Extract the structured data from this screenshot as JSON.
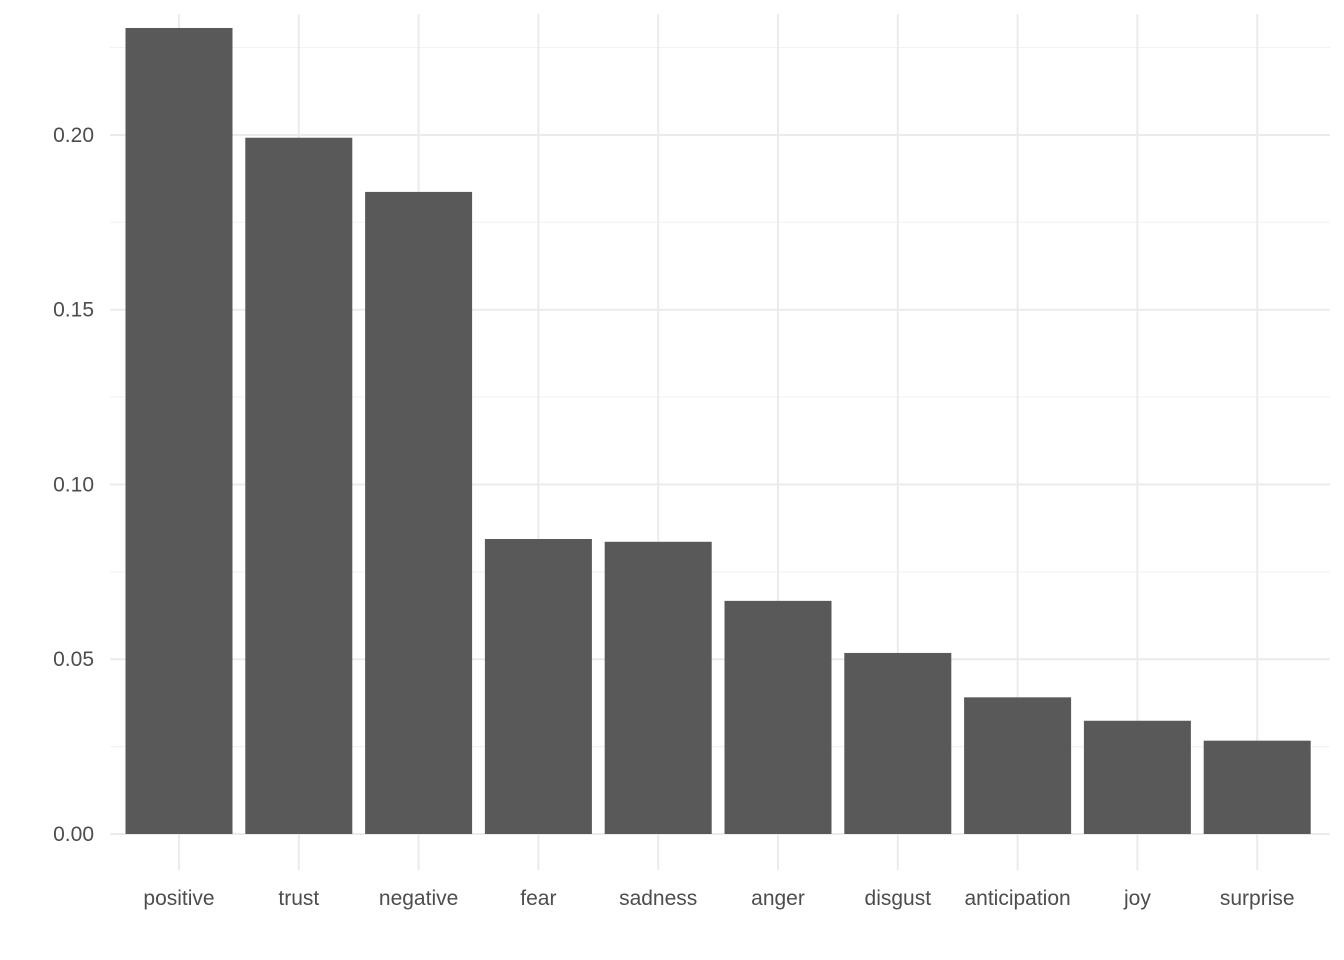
{
  "chart_data": {
    "type": "bar",
    "title": "",
    "xlabel": "",
    "ylabel": "",
    "categories": [
      "positive",
      "trust",
      "negative",
      "fear",
      "sadness",
      "anger",
      "disgust",
      "anticipation",
      "joy",
      "surprise"
    ],
    "values": [
      0.2306,
      0.1992,
      0.1837,
      0.0844,
      0.0836,
      0.0667,
      0.0518,
      0.0391,
      0.0324,
      0.0267
    ],
    "ylim": [
      0,
      0.2346
    ],
    "y_ticks": [
      0,
      0.05,
      0.1,
      0.15,
      0.2
    ],
    "y_tick_labels": [
      "0.00",
      "0.05",
      "0.10",
      "0.15",
      "0.20"
    ],
    "grid": true,
    "legend": "none",
    "bar_color": "#595959",
    "grid_color": "#ebebeb"
  }
}
